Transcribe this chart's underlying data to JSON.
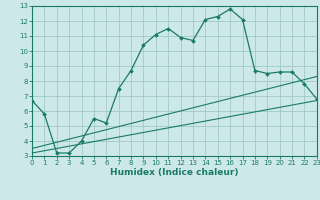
{
  "xlabel": "Humidex (Indice chaleur)",
  "xlim": [
    0,
    23
  ],
  "ylim": [
    3,
    13
  ],
  "xticks": [
    0,
    1,
    2,
    3,
    4,
    5,
    6,
    7,
    8,
    9,
    10,
    11,
    12,
    13,
    14,
    15,
    16,
    17,
    18,
    19,
    20,
    21,
    22,
    23
  ],
  "yticks": [
    3,
    4,
    5,
    6,
    7,
    8,
    9,
    10,
    11,
    12,
    13
  ],
  "bg_color": "#cde8e8",
  "grid_color": "#a0c8c8",
  "line_color": "#1a7a6a",
  "axis_bg": "#cde8e8",
  "curve_x": [
    0,
    1,
    2,
    3,
    4,
    5,
    6,
    7,
    8,
    9,
    10,
    11,
    12,
    13,
    14,
    15,
    16,
    17,
    18,
    19,
    20,
    21,
    22,
    23
  ],
  "curve_y": [
    6.7,
    5.8,
    3.2,
    3.2,
    4.0,
    5.5,
    5.2,
    7.5,
    8.7,
    10.4,
    11.1,
    11.5,
    10.9,
    10.7,
    12.1,
    12.3,
    12.8,
    12.1,
    8.7,
    8.5,
    8.6,
    8.6,
    7.8,
    6.8
  ],
  "line1_x": [
    0,
    23
  ],
  "line1_y": [
    3.2,
    6.7
  ],
  "line2_x": [
    0,
    23
  ],
  "line2_y": [
    3.5,
    8.3
  ]
}
